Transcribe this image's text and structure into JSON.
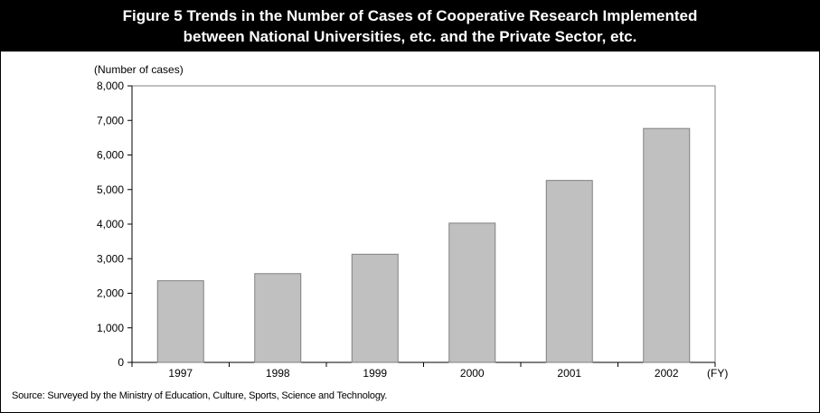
{
  "header": {
    "title_line1": "Figure 5 Trends in the Number of Cases of Cooperative Research Implemented",
    "title_line2": "between National Universities, etc. and the Private Sector, etc."
  },
  "chart_data": {
    "type": "bar",
    "categories": [
      "1997",
      "1998",
      "1999",
      "2000",
      "2001",
      "2002"
    ],
    "values": [
      2362,
      2568,
      3129,
      4029,
      5264,
      6767
    ],
    "ylabel": "(Number of cases)",
    "xlabel": "(FY)",
    "ylim": [
      0,
      8000
    ],
    "yticks": [
      "0",
      "1,000",
      "2,000",
      "3,000",
      "4,000",
      "5,000",
      "6,000",
      "7,000",
      "8,000"
    ],
    "grid": false,
    "bar_color": "#c0c0c0"
  },
  "footer": {
    "source": "Source: Surveyed by the Ministry of Education, Culture, Sports, Science and Technology."
  }
}
